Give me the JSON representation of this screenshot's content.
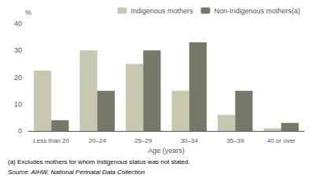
{
  "chart_data": {
    "type": "bar",
    "categories": [
      "Less than 20",
      "20–24",
      "25–29",
      "30–34",
      "35–39",
      "40 or over"
    ],
    "series": [
      {
        "name": "Indigenous mothers",
        "color": "#c8c8b0",
        "values": [
          22.5,
          30.0,
          25.0,
          15.0,
          6.0,
          1.0
        ]
      },
      {
        "name": "Non-Indigenous mothers(a)",
        "color": "#787868",
        "values": [
          4.0,
          15.0,
          30.0,
          33.0,
          15.0,
          3.0
        ]
      }
    ],
    "xlabel": "Age (years)",
    "ylabel": "%",
    "ylim": [
      0,
      40
    ],
    "yticks": [
      0,
      10,
      20,
      30,
      40
    ],
    "grid": false,
    "legend": "upper right",
    "annotations": [
      "(a) Excludes mothers for whom Indigenous status was not stated.",
      "Source: AIHW, National Perinatal Data Collection"
    ]
  }
}
